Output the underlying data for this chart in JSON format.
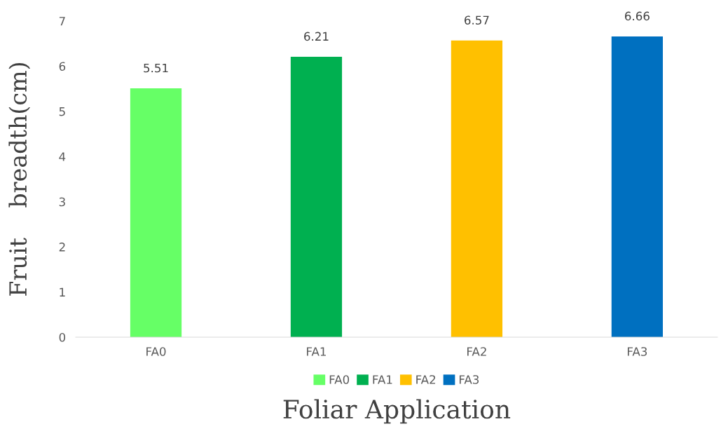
{
  "chart_data": {
    "type": "bar",
    "xlabel": "Foliar Application",
    "ylabel": "Fruit    breadth(cm)",
    "categories": [
      "FA0",
      "FA1",
      "FA2",
      "FA3"
    ],
    "series": [
      {
        "name": "FA0",
        "color": "#66ff66",
        "values": [
          5.51,
          null,
          null,
          null
        ]
      },
      {
        "name": "FA1",
        "color": "#00b050",
        "values": [
          null,
          6.21,
          null,
          null
        ]
      },
      {
        "name": "FA2",
        "color": "#ffc000",
        "values": [
          null,
          null,
          6.57,
          null
        ]
      },
      {
        "name": "FA3",
        "color": "#0070c0",
        "values": [
          null,
          null,
          null,
          6.66
        ]
      }
    ],
    "ylim": [
      0,
      7
    ],
    "yticks": [
      0,
      1,
      2,
      3,
      4,
      5,
      6,
      7
    ],
    "grid": false,
    "legend": "bottom",
    "data_labels": true
  }
}
